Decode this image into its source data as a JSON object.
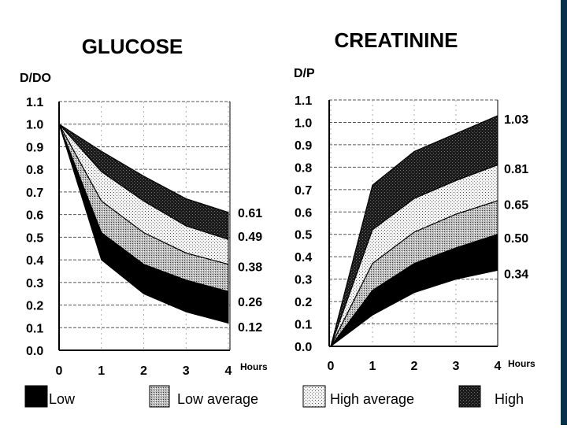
{
  "chart_data": [
    {
      "type": "area",
      "title": "GLUCOSE",
      "ylabel": "D/DO",
      "xlabel": "",
      "x_unit": "Hours",
      "x": [
        0,
        1,
        2,
        3,
        4
      ],
      "ylim": [
        0.0,
        1.1
      ],
      "yticks": [
        "1.1",
        "1.0",
        "0.9",
        "0.8",
        "0.7",
        "0.6",
        "0.5",
        "0.4",
        "0.3",
        "0.2",
        "0.1",
        "0.0"
      ],
      "xticks": [
        "0",
        "1",
        "2",
        "3",
        "4"
      ],
      "grid": true,
      "boundary_labels": [
        "0.61",
        "0.49",
        "0.38",
        "0.26",
        "0.12"
      ],
      "boundaries": [
        {
          "label": "0.61",
          "values": [
            1.0,
            0.88,
            0.77,
            0.67,
            0.61
          ]
        },
        {
          "label": "0.49",
          "values": [
            1.0,
            0.79,
            0.66,
            0.55,
            0.49
          ]
        },
        {
          "label": "0.38",
          "values": [
            1.0,
            0.66,
            0.52,
            0.43,
            0.38
          ]
        },
        {
          "label": "0.26",
          "values": [
            1.0,
            0.52,
            0.38,
            0.31,
            0.26
          ]
        },
        {
          "label": "0.12",
          "values": [
            1.0,
            0.4,
            0.25,
            0.17,
            0.12
          ]
        }
      ],
      "series": [
        {
          "name": "High",
          "band": [
            0,
            1
          ],
          "pattern": "dark"
        },
        {
          "name": "High average",
          "band": [
            1,
            2
          ],
          "pattern": "light"
        },
        {
          "name": "Low average",
          "band": [
            2,
            3
          ],
          "pattern": "medium"
        },
        {
          "name": "Low",
          "band": [
            3,
            4
          ],
          "pattern": "black"
        }
      ]
    },
    {
      "type": "area",
      "title": "CREATININE",
      "ylabel": "D/P",
      "xlabel": "",
      "x_unit": "Hours",
      "x": [
        0,
        1,
        2,
        3,
        4
      ],
      "ylim": [
        0.0,
        1.1
      ],
      "yticks": [
        "1.1",
        "1.0",
        "0.9",
        "0.8",
        "0.7",
        "0.6",
        "0.5",
        "0.4",
        "0.3",
        "0.2",
        "0.1",
        "0.0"
      ],
      "xticks": [
        "0",
        "1",
        "2",
        "3",
        "4"
      ],
      "grid": true,
      "boundary_labels": [
        "1.03",
        "0.81",
        "0.65",
        "0.50",
        "0.34"
      ],
      "boundaries": [
        {
          "label": "1.03",
          "values": [
            0.0,
            0.72,
            0.87,
            0.95,
            1.03
          ]
        },
        {
          "label": "0.81",
          "values": [
            0.0,
            0.52,
            0.66,
            0.74,
            0.81
          ]
        },
        {
          "label": "0.65",
          "values": [
            0.0,
            0.37,
            0.51,
            0.59,
            0.65
          ]
        },
        {
          "label": "0.50",
          "values": [
            0.0,
            0.25,
            0.37,
            0.44,
            0.5
          ]
        },
        {
          "label": "0.34",
          "values": [
            0.0,
            0.14,
            0.24,
            0.3,
            0.34
          ]
        }
      ],
      "series": [
        {
          "name": "High",
          "band": [
            0,
            1
          ],
          "pattern": "dark"
        },
        {
          "name": "High average",
          "band": [
            1,
            2
          ],
          "pattern": "light"
        },
        {
          "name": "Low average",
          "band": [
            2,
            3
          ],
          "pattern": "medium"
        },
        {
          "name": "Low",
          "band": [
            3,
            4
          ],
          "pattern": "black"
        }
      ]
    }
  ],
  "legend": {
    "items": [
      {
        "label": "Low",
        "pattern": "black"
      },
      {
        "label": "Low average",
        "pattern": "medium"
      },
      {
        "label": "High average",
        "pattern": "light"
      },
      {
        "label": "High",
        "pattern": "dark"
      }
    ]
  },
  "colors": {
    "edge": "#07324a",
    "ink": "#000000",
    "grid": "#555555"
  }
}
